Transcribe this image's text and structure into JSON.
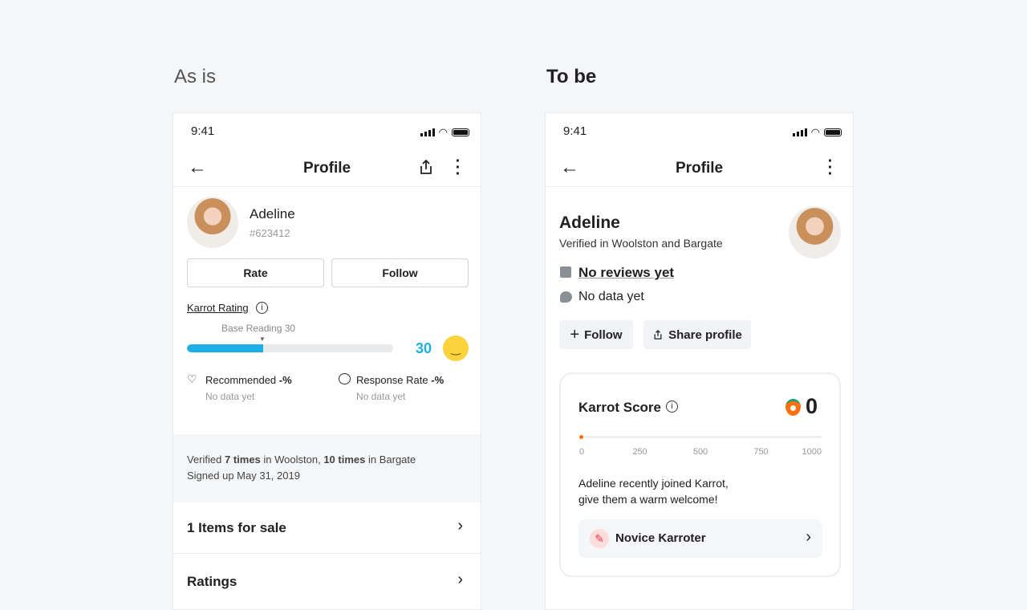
{
  "labels": {
    "as_is": "As is",
    "to_be": "To be"
  },
  "status": {
    "time": "9:41"
  },
  "as_is": {
    "header": {
      "title": "Profile"
    },
    "user": {
      "name": "Adeline",
      "id": "#623412"
    },
    "buttons": {
      "rate": "Rate",
      "follow": "Follow"
    },
    "rating": {
      "label": "Karrot Rating",
      "base_label": "Base Reading 30",
      "value": "30",
      "fill_percent": 37,
      "color": "#1eaee6"
    },
    "stats": [
      {
        "label": "Recommended",
        "value": "-%",
        "sub": "No data yet"
      },
      {
        "label": "Response Rate",
        "value": "-%",
        "sub": "No data yet"
      }
    ],
    "verified": {
      "pre": "Verified ",
      "t1": "7 times",
      "mid": " in Woolston, ",
      "t2": "10 times",
      "post": " in Bargate"
    },
    "signed_up": "Signed up May 31, 2019",
    "rows": [
      "1 Items for sale",
      "Ratings"
    ]
  },
  "to_be": {
    "header": {
      "title": "Profile"
    },
    "user": {
      "name": "Adeline",
      "verified": "Verified in Woolston and Bargate"
    },
    "reviews": "No reviews yet",
    "response": "No data yet",
    "buttons": {
      "follow": "Follow",
      "share": "Share profile"
    },
    "score": {
      "label": "Karrot Score",
      "value": "0",
      "ticks": [
        "0",
        "250",
        "500",
        "750",
        "1000"
      ],
      "fraction": 0,
      "accent": "#ff6f0f"
    },
    "welcome": [
      "Adeline recently joined Karrot,",
      "give them a warm welcome!"
    ],
    "badge": "Novice Karroter"
  }
}
